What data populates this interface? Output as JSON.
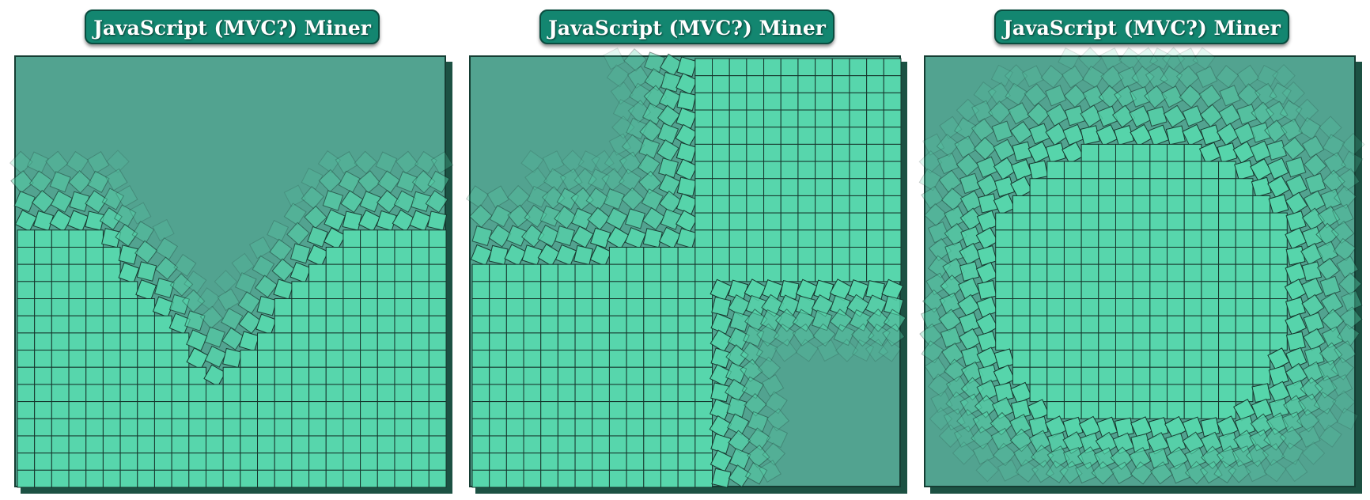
{
  "app": {
    "panels": [
      {
        "id": "left",
        "title": "JavaScript (MVC?) Miner",
        "pattern": "valley"
      },
      {
        "id": "middle",
        "title": "JavaScript (MVC?) Miner",
        "pattern": "corner"
      },
      {
        "id": "right",
        "title": "JavaScript (MVC?) Miner",
        "pattern": "island"
      }
    ]
  },
  "theme": {
    "board_background": "#52a390",
    "tile_fill": "#57d6ac",
    "tile_border": "#16352c",
    "title_background": "#138670",
    "title_text": "#ffffff"
  },
  "grid": {
    "columns": 25,
    "rows": 25
  }
}
